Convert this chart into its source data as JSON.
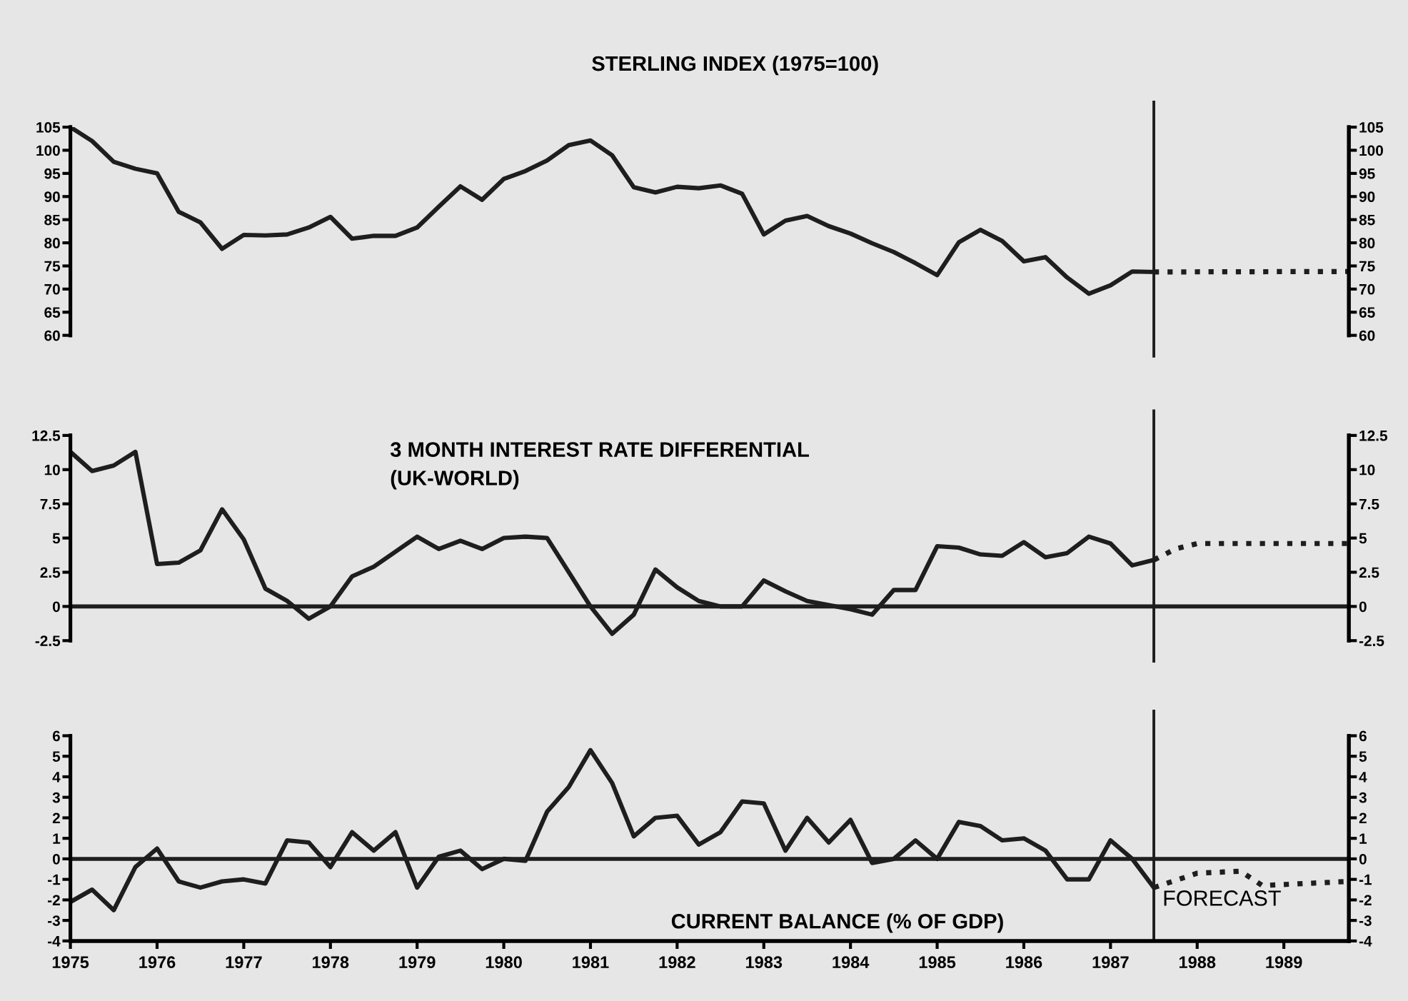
{
  "chart_data": [
    {
      "type": "line",
      "title": "STERLING INDEX (1975=100)",
      "xlim": [
        1975,
        1989.75
      ],
      "xticks": [
        1975,
        1976,
        1977,
        1978,
        1979,
        1980,
        1981,
        1982,
        1983,
        1984,
        1985,
        1986,
        1987,
        1988,
        1989
      ],
      "ylim": [
        60,
        105
      ],
      "yticks": [
        60,
        65,
        70,
        75,
        80,
        85,
        90,
        95,
        100,
        105
      ],
      "y2lim": [
        60,
        105
      ],
      "y2ticks": [
        60,
        65,
        70,
        75,
        80,
        85,
        90,
        95,
        100,
        105
      ],
      "tick_labels": "y",
      "grid": false,
      "legend": false,
      "series": [
        {
          "color": "#1e1e1e",
          "line_style": "solid",
          "x": [
            1975.0,
            1975.25,
            1975.5,
            1975.75,
            1976.0,
            1976.25,
            1976.5,
            1976.75,
            1977.0,
            1977.25,
            1977.5,
            1977.75,
            1978.0,
            1978.25,
            1978.5,
            1978.75,
            1979.0,
            1979.25,
            1979.5,
            1979.75,
            1980.0,
            1980.25,
            1980.5,
            1980.75,
            1981.0,
            1981.25,
            1981.5,
            1981.75,
            1982.0,
            1982.25,
            1982.5,
            1982.75,
            1983.0,
            1983.25,
            1983.5,
            1983.75,
            1984.0,
            1984.25,
            1984.5,
            1984.75,
            1985.0,
            1985.25,
            1985.5,
            1985.75,
            1986.0,
            1986.25,
            1986.5,
            1986.75,
            1987.0,
            1987.25,
            1987.5
          ],
          "values": [
            105,
            102,
            97.5,
            96,
            95,
            86.7,
            84.4,
            78.7,
            81.7,
            81.6,
            81.8,
            83.3,
            85.6,
            80.9,
            81.5,
            81.5,
            83.3,
            87.8,
            92.2,
            89.3,
            93.8,
            95.5,
            97.8,
            101.1,
            102.1,
            98.9,
            92,
            90.9,
            92.1,
            91.8,
            92.4,
            90.6,
            81.8,
            84.8,
            85.8,
            83.6,
            82,
            79.9,
            78,
            75.6,
            73,
            80.1,
            82.8,
            80.4,
            76,
            76.9,
            72.5,
            69,
            70.8,
            73.8,
            73.7
          ]
        },
        {
          "color": "#1e1e1e",
          "line_style": "dotted",
          "x": [
            1987.5,
            1989.75
          ],
          "values": [
            73.7,
            73.8
          ]
        }
      ],
      "ref_lines": [
        {
          "axis": "x",
          "value": 1987.5,
          "color": "#1e1e1e"
        }
      ]
    },
    {
      "type": "line",
      "title": "3 MONTH INTEREST RATE DIFFERENTIAL\n(UK-WORLD)",
      "xlim": [
        1975,
        1989.75
      ],
      "xticks": [
        1975,
        1976,
        1977,
        1978,
        1979,
        1980,
        1981,
        1982,
        1983,
        1984,
        1985,
        1986,
        1987,
        1988,
        1989
      ],
      "ylim": [
        -2.5,
        12.5
      ],
      "yticks": [
        -2.5,
        0,
        2.5,
        5,
        7.5,
        10,
        12.5
      ],
      "y2lim": [
        -2.5,
        12.5
      ],
      "y2ticks": [
        -2.5,
        0,
        2.5,
        5,
        7.5,
        10,
        12.5
      ],
      "tick_labels": "y",
      "grid": false,
      "legend": false,
      "series": [
        {
          "color": "#1e1e1e",
          "line_style": "solid",
          "x": [
            1975.0,
            1975.25,
            1975.5,
            1975.75,
            1976.0,
            1976.25,
            1976.5,
            1976.75,
            1977.0,
            1977.25,
            1977.5,
            1977.75,
            1978.0,
            1978.25,
            1978.5,
            1978.75,
            1979.0,
            1979.25,
            1979.5,
            1979.75,
            1980.0,
            1980.25,
            1980.5,
            1980.75,
            1981.0,
            1981.25,
            1981.5,
            1981.75,
            1982.0,
            1982.25,
            1982.5,
            1982.75,
            1983.0,
            1983.25,
            1983.5,
            1983.75,
            1984.0,
            1984.25,
            1984.5,
            1984.75,
            1985.0,
            1985.25,
            1985.5,
            1985.75,
            1986.0,
            1986.25,
            1986.5,
            1986.75,
            1987.0,
            1987.25,
            1987.5
          ],
          "values": [
            11.3,
            9.9,
            10.3,
            11.3,
            3.1,
            3.2,
            4.1,
            7.1,
            4.9,
            1.3,
            0.4,
            -0.9,
            0,
            2.2,
            2.9,
            4,
            5.1,
            4.2,
            4.8,
            4.2,
            5,
            5.1,
            5,
            2.5,
            0,
            -2,
            -0.6,
            2.7,
            1.4,
            0.4,
            0,
            0,
            1.9,
            1.1,
            0.4,
            0.1,
            -0.2,
            -0.6,
            1.2,
            1.2,
            4.4,
            4.3,
            3.8,
            3.7,
            4.7,
            3.6,
            3.9,
            5.1,
            4.6,
            3,
            3.4
          ]
        },
        {
          "color": "#1e1e1e",
          "line_style": "dotted",
          "x": [
            1987.5,
            1987.75,
            1988.0,
            1989.75
          ],
          "values": [
            3.4,
            4.2,
            4.6,
            4.6
          ]
        }
      ],
      "ref_lines": [
        {
          "axis": "x",
          "value": 1987.5,
          "color": "#1e1e1e"
        },
        {
          "axis": "y",
          "value": 0,
          "color": "#1e1e1e"
        }
      ]
    },
    {
      "type": "line",
      "title": "CURRENT BALANCE (% OF GDP)",
      "annotations": [
        "FORECAST"
      ],
      "xlim": [
        1975,
        1989.75
      ],
      "xticks": [
        1975,
        1976,
        1977,
        1978,
        1979,
        1980,
        1981,
        1982,
        1983,
        1984,
        1985,
        1986,
        1987,
        1988,
        1989
      ],
      "ylim": [
        -4,
        6
      ],
      "yticks": [
        -4,
        -3,
        -2,
        -1,
        0,
        1,
        2,
        3,
        4,
        5,
        6
      ],
      "y2lim": [
        -4,
        6
      ],
      "y2ticks": [
        -4,
        -3,
        -2,
        -1,
        0,
        1,
        2,
        3,
        4,
        5,
        6
      ],
      "grid": false,
      "legend": false,
      "series": [
        {
          "color": "#1e1e1e",
          "line_style": "solid",
          "x": [
            1975.0,
            1975.25,
            1975.5,
            1975.75,
            1976.0,
            1976.25,
            1976.5,
            1976.75,
            1977.0,
            1977.25,
            1977.5,
            1977.75,
            1978.0,
            1978.25,
            1978.5,
            1978.75,
            1979.0,
            1979.25,
            1979.5,
            1979.75,
            1980.0,
            1980.25,
            1980.5,
            1980.75,
            1981.0,
            1981.25,
            1981.5,
            1981.75,
            1982.0,
            1982.25,
            1982.5,
            1982.75,
            1983.0,
            1983.25,
            1983.5,
            1983.75,
            1984.0,
            1984.25,
            1984.5,
            1984.75,
            1985.0,
            1985.25,
            1985.5,
            1985.75,
            1986.0,
            1986.25,
            1986.5,
            1986.75,
            1987.0,
            1987.25,
            1987.5
          ],
          "values": [
            -2.1,
            -1.5,
            -2.5,
            -0.4,
            0.5,
            -1.1,
            -1.4,
            -1.1,
            -1,
            -1.2,
            0.9,
            0.8,
            -0.4,
            1.3,
            0.4,
            1.3,
            -1.4,
            0.1,
            0.4,
            -0.5,
            0,
            -0.1,
            2.3,
            3.5,
            5.3,
            3.7,
            1.1,
            2,
            2.1,
            0.7,
            1.3,
            2.8,
            2.7,
            0.4,
            2,
            0.8,
            1.9,
            -0.2,
            0,
            0.9,
            0,
            1.8,
            1.6,
            0.9,
            1,
            0.4,
            -1,
            -1,
            0.9,
            0,
            -1.4
          ]
        },
        {
          "color": "#1e1e1e",
          "line_style": "dotted",
          "x": [
            1987.5,
            1988.0,
            1988.5,
            1988.75,
            1989.75
          ],
          "values": [
            -1.4,
            -0.7,
            -0.6,
            -1.3,
            -1.1
          ]
        }
      ],
      "ref_lines": [
        {
          "axis": "x",
          "value": 1987.5,
          "color": "#1e1e1e"
        },
        {
          "axis": "y",
          "value": 0,
          "color": "#1e1e1e"
        }
      ]
    }
  ]
}
